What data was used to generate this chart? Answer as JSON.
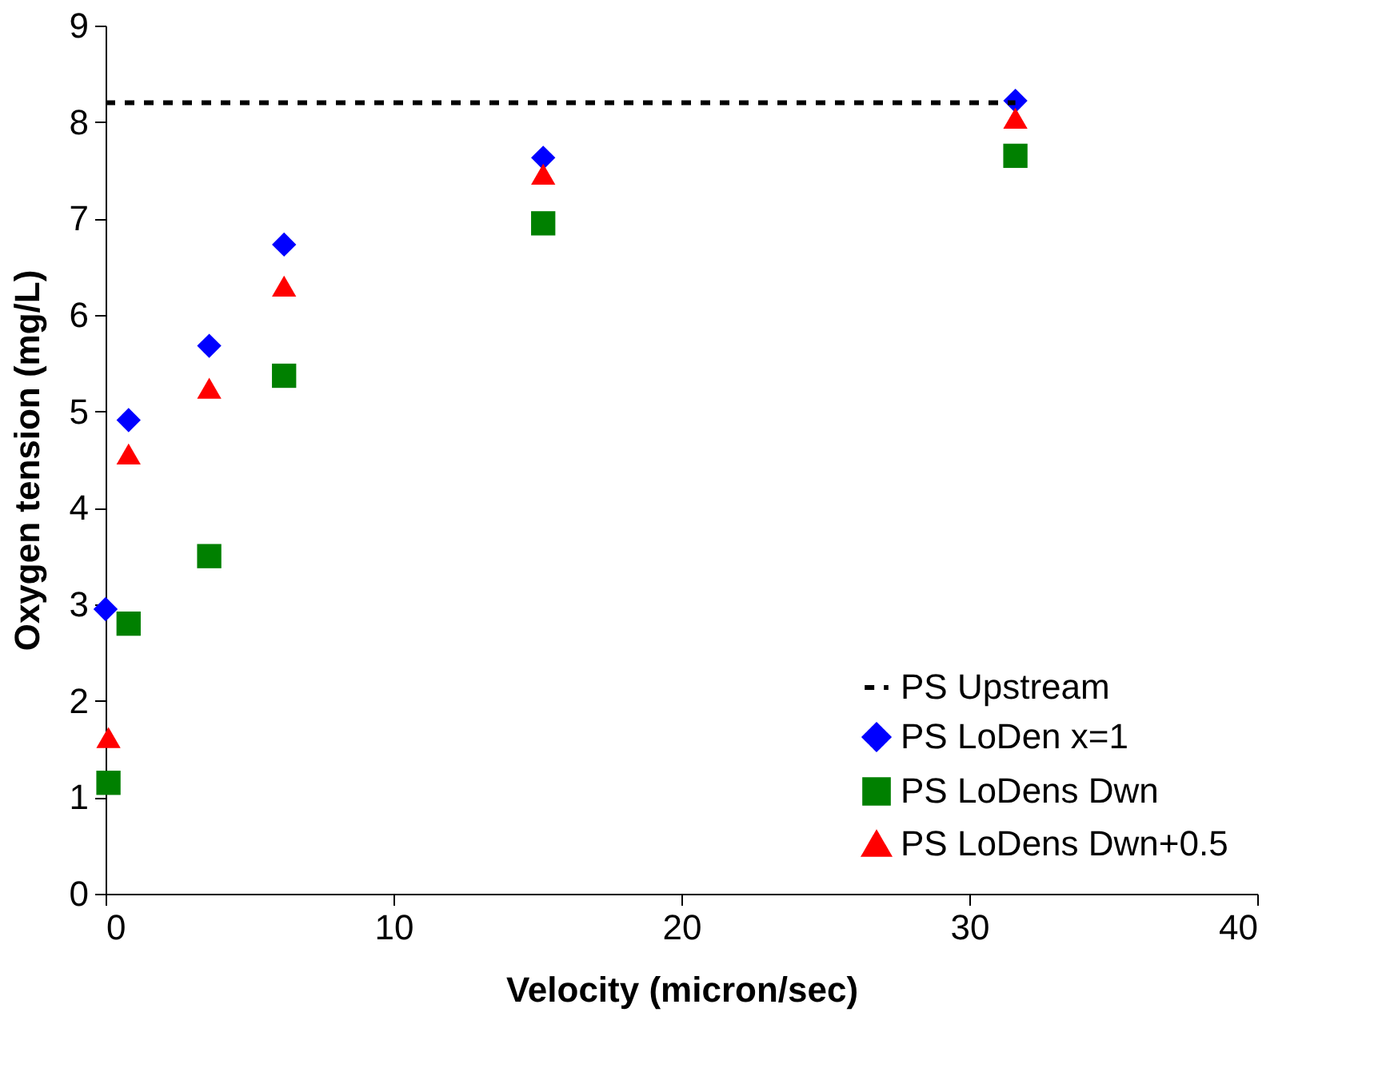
{
  "chart_data": {
    "type": "scatter",
    "xlabel": "Velocity (micron/sec)",
    "ylabel": "Oxygen tension (mg/L)",
    "xlim": [
      0,
      40
    ],
    "xticks": [
      0,
      10,
      20,
      30,
      40
    ],
    "ylim": [
      0,
      9
    ],
    "yticks": [
      0,
      1,
      2,
      3,
      4,
      5,
      6,
      7,
      8,
      9
    ],
    "grid": false,
    "legend": "bottom right",
    "series": [
      {
        "name": "PS Upstream",
        "type": "line",
        "line_style": "dashed",
        "marker": "none",
        "color": "#000000",
        "x": [
          0,
          31.6
        ],
        "values": [
          8.2,
          8.2
        ]
      },
      {
        "name": "PS LoDen x=1",
        "marker": "diamond",
        "color": "#0000ff",
        "x": [
          0,
          0.8,
          3.6,
          6.2,
          15.2,
          31.6
        ],
        "values": [
          2.95,
          4.91,
          5.68,
          6.73,
          7.63,
          8.22
        ]
      },
      {
        "name": "PS LoDens Dwn",
        "marker": "square",
        "color": "#008000",
        "x": [
          0.1,
          0.8,
          3.6,
          6.2,
          15.2,
          31.6
        ],
        "values": [
          1.15,
          2.8,
          3.5,
          5.37,
          6.95,
          7.65
        ]
      },
      {
        "name": "PS LoDens Dwn+0.5",
        "marker": "triangle",
        "color": "#ff0000",
        "x": [
          0.1,
          0.8,
          3.6,
          6.2,
          15.2,
          31.6
        ],
        "values": [
          1.62,
          4.56,
          5.24,
          6.3,
          7.46,
          8.04
        ]
      }
    ]
  }
}
